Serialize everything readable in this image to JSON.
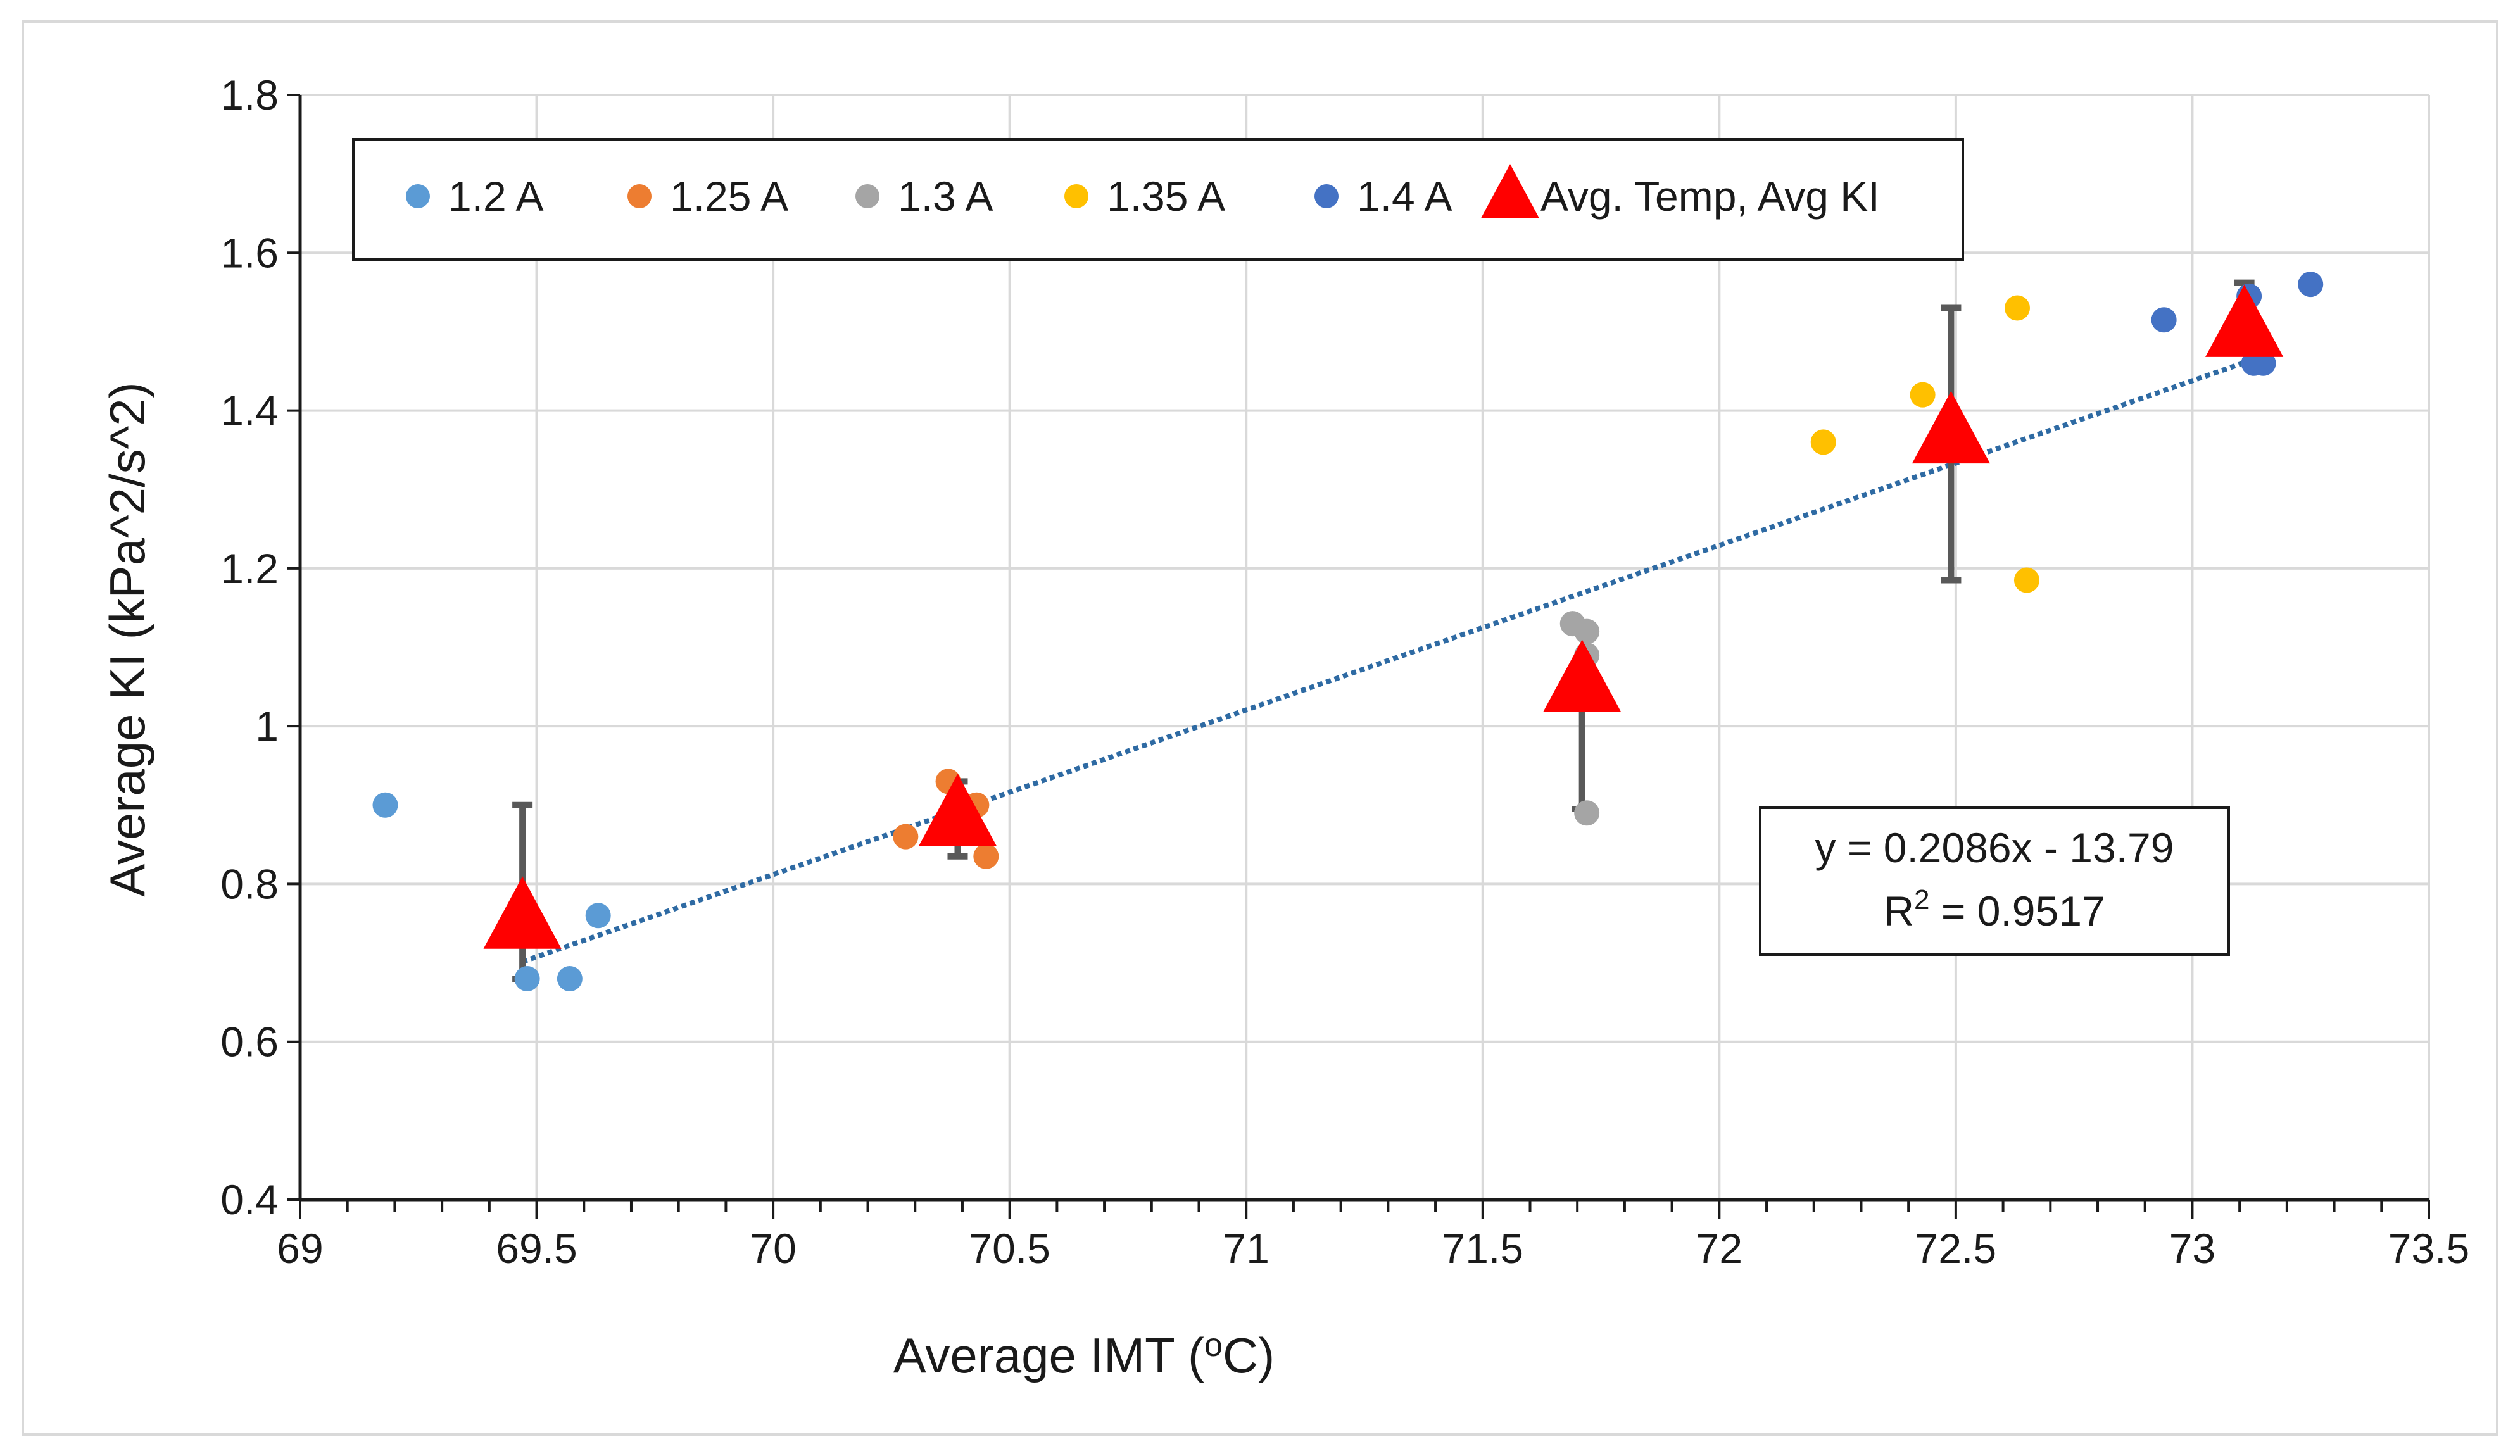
{
  "chart_data": {
    "type": "scatter",
    "xlabel": "Average IMT (",
    "xlabel_sup": "o",
    "xlabel_unit": "C)",
    "ylabel": "Average KI (kPa^2/s^2)",
    "xlim": [
      69,
      73.5
    ],
    "ylim": [
      0.4,
      1.8
    ],
    "x_ticks": [
      "69",
      "69.5",
      "70",
      "70.5",
      "71",
      "71.5",
      "72",
      "72.5",
      "73",
      "73.5"
    ],
    "y_ticks": [
      "0.4",
      "0.6",
      "0.8",
      "1",
      "1.2",
      "1.4",
      "1.6",
      "1.8"
    ],
    "grid": true,
    "legend_position": "top-left",
    "series": [
      {
        "name": "1.2 A",
        "color": "#5b9bd5",
        "marker": "circle",
        "x": [
          69.18,
          69.48,
          69.57,
          69.63
        ],
        "y": [
          0.9,
          0.68,
          0.68,
          0.76
        ]
      },
      {
        "name": "1.25 A",
        "color": "#ed7d31",
        "marker": "circle",
        "x": [
          70.28,
          70.37,
          70.43,
          70.45
        ],
        "y": [
          0.86,
          0.93,
          0.9,
          0.835
        ]
      },
      {
        "name": "1.3 A",
        "color": "#a5a5a5",
        "marker": "circle",
        "x": [
          71.69,
          71.72,
          71.72,
          71.72,
          71.69
        ],
        "y": [
          1.13,
          1.12,
          1.09,
          0.89,
          1.04
        ]
      },
      {
        "name": "1.35 A",
        "color": "#ffc000",
        "marker": "circle",
        "x": [
          72.22,
          72.43,
          72.63,
          72.65
        ],
        "y": [
          1.36,
          1.42,
          1.53,
          1.185
        ]
      },
      {
        "name": "1.4 A",
        "color": "#4472c4",
        "marker": "circle",
        "x": [
          72.94,
          73.12,
          73.13,
          73.15,
          73.25
        ],
        "y": [
          1.515,
          1.545,
          1.46,
          1.46,
          1.56
        ]
      },
      {
        "name": "Avg. Temp, Avg KI",
        "color": "#ff0000",
        "marker": "triangle",
        "x": [
          69.47,
          70.39,
          71.71,
          72.49,
          73.11
        ],
        "y": [
          0.755,
          0.885,
          1.055,
          1.37,
          1.505
        ],
        "error_low": [
          0.68,
          0.835,
          0.895,
          1.185,
          1.505
        ],
        "error_high": [
          0.9,
          0.93,
          1.055,
          1.53,
          1.562
        ]
      }
    ],
    "trendline": {
      "type": "linear",
      "slope": 0.2086,
      "intercept": -13.79,
      "x_range": [
        69.47,
        73.11
      ],
      "color": "#2e6aa3",
      "style": "dotted",
      "equation_label": "y = 0.2086x - 13.79",
      "r2_prefix": "R",
      "r2_sup": "2",
      "r2_value": " = 0.9517"
    }
  }
}
